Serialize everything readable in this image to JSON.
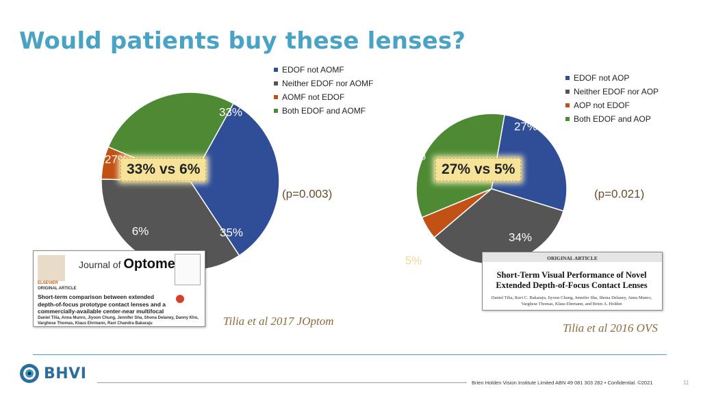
{
  "slide": {
    "title": "Would patients buy these lenses?",
    "brand": "BHVI",
    "footer": "Brien Holden Vision Institute Limited ABN 49 081 303 282 • Confidential. ©2021",
    "page_number": "11",
    "accent_color": "#4aa3c4"
  },
  "chart_data": [
    {
      "type": "pie",
      "categories": [
        "EDOF not AOMF",
        "Neither EDOF nor AOMF",
        "AOMF not EDOF",
        "Both EDOF and AOMF"
      ],
      "values": [
        33,
        35,
        6,
        27
      ],
      "labels": [
        "33%",
        "35%",
        "6%",
        "27%"
      ],
      "colors": [
        "#2f4e97",
        "#555555",
        "#c25116",
        "#4e8a34"
      ],
      "legend_position": "top-right",
      "callout": "33% vs 6%",
      "annotation": "(p=0.003)",
      "citation": "Tilia et al 2017 JOptom"
    },
    {
      "type": "pie",
      "categories": [
        "EDOF not AOP",
        "Neither EDOF nor AOP",
        "AOP not EDOF",
        "Both EDOF and AOP"
      ],
      "values": [
        27,
        34,
        5,
        34
      ],
      "labels": [
        "27%",
        "34%",
        "5%",
        "34%"
      ],
      "colors": [
        "#2f4e97",
        "#555555",
        "#c25116",
        "#4e8a34"
      ],
      "legend_position": "top-right",
      "callout": "27% vs 5%",
      "annotation": "(p=0.021)",
      "citation": "Tilia et al 2016 OVS"
    }
  ],
  "papers": [
    {
      "journal_prefix": "Journal of",
      "journal_name": "Optometry",
      "publisher": "ELSEVIER",
      "section": "ORIGINAL ARTICLE",
      "title": "Short-term comparison between extended depth-of-focus prototype contact lenses and a commercially-available center-near multifocal",
      "authors": "Daniel Tilia, Anna Munro, Jiyoon Chung, Jennifer Sha, Shona Delaney, Danny Kho, Varghese Thomas, Klaus Ehrmann, Ravi Chandra Bakaraju"
    },
    {
      "section": "ORIGINAL ARTICLE",
      "title": "Short-Term Visual Performance of Novel Extended Depth-of-Focus Contact Lenses",
      "authors": "Daniel Tilia, Ravi C. Bakaraju, Jiyoon Chung, Jennifer Sha, Shona Delaney, Anna Munro, Varghese Thomas, Klaus Ehrmann, and Brien A. Holden"
    }
  ]
}
